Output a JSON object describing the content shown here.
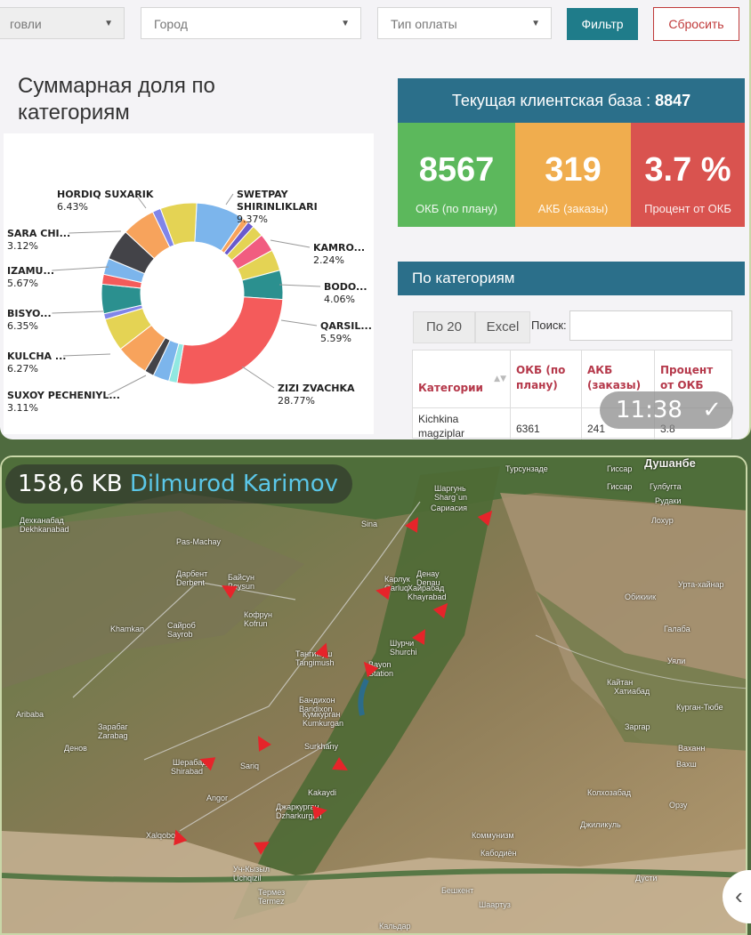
{
  "filters": {
    "left_select": "говли",
    "city_select": "Город",
    "payment_select": "Тип оплаты",
    "filter_button": "Фильтр",
    "reset_button": "Сбросить"
  },
  "pie_section": {
    "title": "Суммарная доля по категориям"
  },
  "chart_data": {
    "type": "pie",
    "title": "Суммарная доля по категориям",
    "slices": [
      {
        "label": "SWETPAY SHIRINLIKLARI",
        "value": 9.37,
        "color": "#7cb5ec"
      },
      {
        "label": "",
        "value": 1.2,
        "color": "#f7a35c"
      },
      {
        "label": "",
        "value": 1.3,
        "color": "#6a5acd"
      },
      {
        "label": "KAMRO...",
        "value": 2.24,
        "color": "#e4d354"
      },
      {
        "label": "",
        "value": 3.5,
        "color": "#f15c80"
      },
      {
        "label": "BODO...",
        "value": 4.06,
        "color": "#e4d354"
      },
      {
        "label": "QARSIL...",
        "value": 5.59,
        "color": "#2b908f"
      },
      {
        "label": "ZIZI ZVACHKA",
        "value": 28.77,
        "color": "#f45b5b"
      },
      {
        "label": "",
        "value": 1.6,
        "color": "#91e8e1"
      },
      {
        "label": "SUXOY PECHENIYL...",
        "value": 3.11,
        "color": "#7cb5ec"
      },
      {
        "label": "",
        "value": 1.8,
        "color": "#434348"
      },
      {
        "label": "KULCHA ...",
        "value": 6.27,
        "color": "#f7a35c"
      },
      {
        "label": "BISYO...",
        "value": 6.35,
        "color": "#e4d354"
      },
      {
        "label": "",
        "value": 1.1,
        "color": "#8085e9"
      },
      {
        "label": "IZAMU...",
        "value": 5.67,
        "color": "#2b908f"
      },
      {
        "label": "",
        "value": 1.9,
        "color": "#f45b5b"
      },
      {
        "label": "SARA CHI...",
        "value": 3.12,
        "color": "#7cb5ec"
      },
      {
        "label": "",
        "value": 6.0,
        "color": "#434348"
      },
      {
        "label": "HORDIQ SUXARIK",
        "value": 6.43,
        "color": "#f7a35c"
      },
      {
        "label": "",
        "value": 1.6,
        "color": "#8085e9"
      },
      {
        "label": "",
        "value": 7.0,
        "color": "#e4d354"
      }
    ],
    "labels": [
      {
        "name": "HORDIQ SUXARIK",
        "pct": "6.43%"
      },
      {
        "name": "SWETPAY SHIRINLIKLARI",
        "pct": "9.37%"
      },
      {
        "name": "SARA CHI...",
        "pct": "3.12%"
      },
      {
        "name": "KAMRO...",
        "pct": "2.24%"
      },
      {
        "name": "IZAMU...",
        "pct": "5.67%"
      },
      {
        "name": "BODO...",
        "pct": "4.06%"
      },
      {
        "name": "BISYO...",
        "pct": "6.35%"
      },
      {
        "name": "QARSIL...",
        "pct": "5.59%"
      },
      {
        "name": "KULCHA ...",
        "pct": "6.27%"
      },
      {
        "name": "ZIZI ZVACHKA",
        "pct": "28.77%"
      },
      {
        "name": "SUXOY PECHENIYL...",
        "pct": "3.11%"
      }
    ]
  },
  "kpi": {
    "header_label": "Текущая клиентская база :",
    "header_value": "8847",
    "cards": [
      {
        "value": "8567",
        "label": "ОКБ (по плану)",
        "color": "#5cb85c"
      },
      {
        "value": "319",
        "label": "АКБ (заказы)",
        "color": "#f0ad4e"
      },
      {
        "value": "3.7 %",
        "label": "Процент от ОКБ",
        "color": "#d9534f"
      }
    ]
  },
  "categories": {
    "title": "По категориям",
    "btn_count": "По 20",
    "btn_excel": "Excel",
    "search_label": "Поиск:",
    "columns": [
      "Категории",
      "ОКБ (по плану)",
      "АКБ (заказы)",
      "Процент от ОКБ"
    ],
    "row": [
      "Kichkina magziplar",
      "6361",
      "241",
      "3.8"
    ]
  },
  "message1": {
    "time": "11:38",
    "check": "✓"
  },
  "message2": {
    "size": "158,6 KB",
    "sender": "Dilmurod Karimov"
  },
  "map": {
    "labels": [
      "Турсунзаде",
      "Гиссар",
      "Душанбе",
      "Гиссар",
      "Гулбугта",
      "Рудаки",
      "Лохур",
      "Шаргунь",
      "Sharg`un",
      "Сариасия",
      "Sina",
      "Денау",
      "Denau",
      "Pas-Machay",
      "Дехканабад",
      "Dekhkanabad",
      "Байсун",
      "Boysun",
      "Дарбент",
      "Derbent",
      "Карлук",
      "Qarluq",
      "Хайрабад",
      "Khayrabad",
      "Кофрун",
      "Kofrun",
      "Обикиик",
      "Урта-хайнар",
      "Сайроб",
      "Sayrob",
      "Khamkan",
      "Шурчи",
      "Shurchi",
      "Тангимуш",
      "Tangimush",
      "Bayon",
      "Station",
      "Галаба",
      "Уяли",
      "Кайтан",
      "Хатиабад",
      "Бандихон",
      "Baridixon",
      "Кумкурган",
      "Kumkurgan",
      "Курган-Тюбе",
      "Заргар",
      "Aribaba",
      "Зарабаг",
      "Zarabag",
      "Денов",
      "Shirabad",
      "Sariq",
      "Surkhany",
      "Ваханн",
      "Вахш",
      "Шерабад",
      "Kakaydi",
      "Джаркурган",
      "Dzharkurgan",
      "Колхозабад",
      "Орзу",
      "Angor",
      "Джиликуль",
      "Xalqobod",
      "Коммунизм",
      "Кабодиён",
      "Уч-Кызыл",
      "Uchqizil",
      "Термез",
      "Termez",
      "Бешкент",
      "Шаартуз",
      "Дусти",
      "Кальдар"
    ]
  }
}
